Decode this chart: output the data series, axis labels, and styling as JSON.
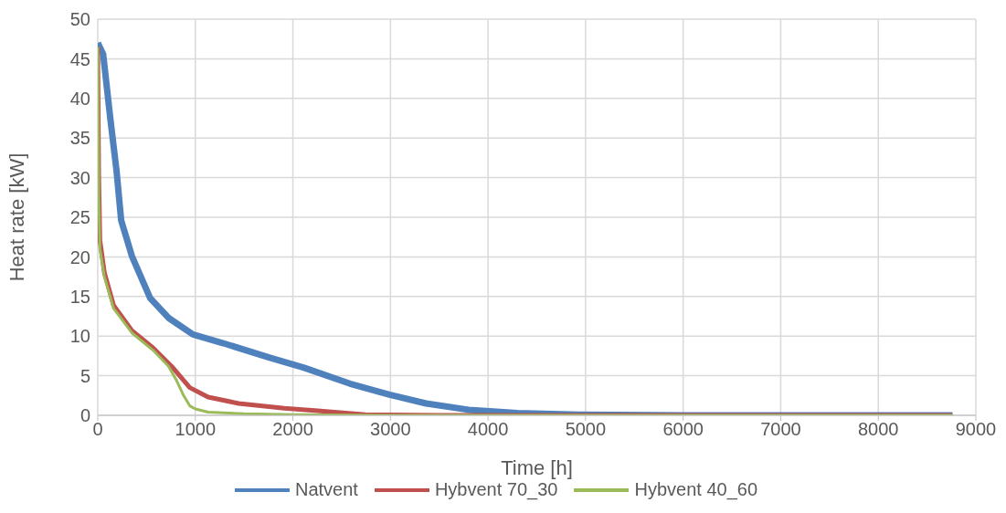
{
  "chart_data": {
    "type": "line",
    "xlabel": "Time [h]",
    "ylabel": "Heat rate [kW]",
    "xlim": [
      0,
      9000
    ],
    "xticks": [
      0,
      1000,
      2000,
      3000,
      4000,
      5000,
      6000,
      7000,
      8000,
      9000
    ],
    "ylim": [
      0,
      50
    ],
    "yticks": [
      0,
      5,
      10,
      15,
      20,
      25,
      30,
      35,
      40,
      45,
      50
    ],
    "grid": true,
    "legend": "bottom",
    "marker": "none",
    "line_style": "solid",
    "series": [
      {
        "name": "Natvent",
        "color": "#4f81bd",
        "x": [
          0,
          55,
          130,
          193,
          240,
          350,
          537,
          725,
          975,
          1287,
          1756,
          2115,
          2584,
          2990,
          3365,
          3802,
          4300,
          4925,
          6000,
          8760
        ],
        "values": [
          47,
          45.6,
          37.3,
          30.8,
          24.6,
          20.1,
          14.8,
          12.3,
          10.2,
          9.1,
          7.3,
          6.0,
          4.0,
          2.6,
          1.5,
          0.7,
          0.3,
          0.1,
          0,
          0
        ]
      },
      {
        "name": "Hybvent 70_30",
        "color": "#c0504d",
        "x": [
          0,
          10,
          22,
          68,
          162,
          350,
          568,
          756,
          943,
          1131,
          1443,
          1912,
          2224,
          2740,
          3500,
          8760
        ],
        "values": [
          46.5,
          30,
          22.1,
          18,
          13.9,
          10.7,
          8.5,
          6.2,
          3.5,
          2.3,
          1.5,
          0.9,
          0.6,
          0.1,
          0,
          0
        ]
      },
      {
        "name": "Hybvent 40_60",
        "color": "#9bbb59",
        "x": [
          0,
          10,
          22,
          68,
          162,
          350,
          568,
          725,
          803,
          880,
          943,
          1000,
          1131,
          1500,
          2000,
          3000,
          8760
        ],
        "values": [
          46.5,
          28,
          21,
          17.5,
          13.5,
          10.4,
          8.2,
          6.2,
          4.5,
          2.5,
          1.2,
          0.8,
          0.4,
          0.2,
          0.1,
          0,
          0
        ]
      }
    ]
  }
}
